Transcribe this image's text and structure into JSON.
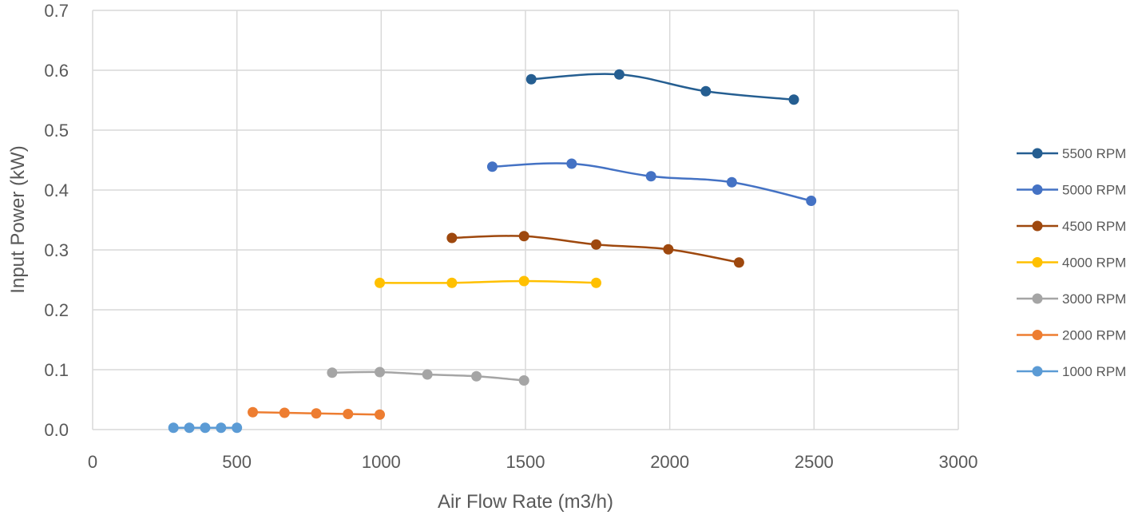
{
  "chart_data": {
    "type": "line",
    "title": "",
    "xlabel": "Air Flow Rate (m3/h)",
    "ylabel": "Input Power (kW)",
    "xlim": [
      0,
      3000
    ],
    "ylim": [
      0,
      0.7
    ],
    "xticks": [
      0,
      500,
      1000,
      1500,
      2000,
      2500,
      3000
    ],
    "yticks": [
      0.0,
      0.1,
      0.2,
      0.3,
      0.4,
      0.5,
      0.6,
      0.7
    ],
    "xtick_labels": [
      "0",
      "500",
      "1000",
      "1500",
      "2000",
      "2500",
      "3000"
    ],
    "ytick_labels": [
      "0.0",
      "0.1",
      "0.2",
      "0.3",
      "0.4",
      "0.5",
      "0.6",
      "0.7"
    ],
    "grid": true,
    "legend_position": "right",
    "series": [
      {
        "name": "5500 RPM",
        "color": "#255E91",
        "x": [
          1520,
          1825,
          2125,
          2430
        ],
        "y": [
          0.585,
          0.593,
          0.565,
          0.551
        ]
      },
      {
        "name": "5000 RPM",
        "color": "#4472C4",
        "x": [
          1385,
          1660,
          1935,
          2215,
          2490
        ],
        "y": [
          0.439,
          0.444,
          0.423,
          0.413,
          0.382
        ]
      },
      {
        "name": "4500 RPM",
        "color": "#9E480E",
        "x": [
          1245,
          1495,
          1745,
          1995,
          2240
        ],
        "y": [
          0.32,
          0.323,
          0.309,
          0.301,
          0.279
        ]
      },
      {
        "name": "4000 RPM",
        "color": "#FFC000",
        "x": [
          995,
          1245,
          1495,
          1745
        ],
        "y": [
          0.245,
          0.245,
          0.248,
          0.245
        ]
      },
      {
        "name": "3000 RPM",
        "color": "#A5A5A5",
        "x": [
          830,
          995,
          1160,
          1330,
          1495
        ],
        "y": [
          0.095,
          0.096,
          0.092,
          0.089,
          0.082
        ]
      },
      {
        "name": "2000 RPM",
        "color": "#ED7D31",
        "x": [
          555,
          665,
          775,
          885,
          995
        ],
        "y": [
          0.029,
          0.028,
          0.027,
          0.026,
          0.025
        ]
      },
      {
        "name": "1000 RPM",
        "color": "#5B9BD5",
        "x": [
          280,
          335,
          390,
          445,
          500
        ],
        "y": [
          0.003,
          0.003,
          0.003,
          0.003,
          0.003
        ]
      }
    ]
  }
}
